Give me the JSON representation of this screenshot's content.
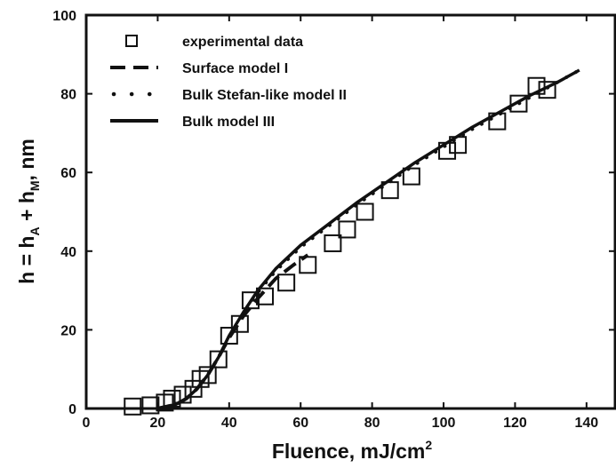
{
  "chart_data": {
    "type": "scatter",
    "title": "",
    "xlabel": "Fluence, mJ/cm",
    "xlabel_sup": "2",
    "ylabel_parts": [
      "h = h",
      "A",
      " + h",
      "M",
      ", nm"
    ],
    "xlim": [
      0,
      148
    ],
    "ylim": [
      0,
      100
    ],
    "xticks": [
      0,
      20,
      40,
      60,
      80,
      100,
      120,
      140
    ],
    "yticks": [
      0,
      20,
      40,
      60,
      80,
      100
    ],
    "grid": false,
    "legend_position": "top-left",
    "colors": {
      "ink": "#111111",
      "background": "#ffffff"
    },
    "series": [
      {
        "name": "experimental data",
        "style": "open-square",
        "x": [
          13,
          18,
          22,
          24,
          27,
          30,
          32,
          34,
          37,
          40,
          43,
          46,
          50,
          56,
          62,
          69,
          73,
          78,
          85,
          91,
          101,
          104,
          115,
          121,
          126,
          129
        ],
        "y": [
          0.5,
          0.8,
          1.5,
          2.5,
          3.5,
          5,
          7.5,
          8.5,
          12.5,
          18.5,
          21.5,
          27.5,
          28.5,
          32,
          36.5,
          42,
          45.5,
          50,
          55.5,
          59,
          65.5,
          67,
          73,
          77.5,
          82,
          81
        ]
      },
      {
        "name": "Surface model  I",
        "style": "dashed",
        "x": [
          20,
          25,
          28,
          31,
          34,
          37,
          40,
          44,
          48,
          53,
          58,
          62
        ],
        "y": [
          0,
          1,
          2.5,
          5,
          8.5,
          13,
          18,
          23.5,
          28,
          33,
          36.5,
          39
        ]
      },
      {
        "name": "Bulk Stefan-like model  II",
        "style": "dotted",
        "x": [
          20,
          25,
          28,
          31,
          34,
          37,
          40,
          44,
          48,
          53,
          60,
          68,
          76,
          84,
          92,
          100,
          108,
          116,
          124,
          132,
          138
        ],
        "y": [
          0,
          1,
          2.5,
          5,
          8.5,
          13,
          18,
          24,
          29.5,
          35,
          41,
          46.5,
          52,
          57,
          62,
          66.5,
          71,
          75,
          79,
          83,
          86
        ]
      },
      {
        "name": "Bulk model  III",
        "style": "solid",
        "x": [
          20,
          25,
          28,
          31,
          34,
          37,
          40,
          44,
          48,
          53,
          60,
          68,
          76,
          84,
          92,
          100,
          108,
          116,
          124,
          132,
          138
        ],
        "y": [
          0,
          1,
          2.5,
          5,
          8.5,
          13,
          18.5,
          24.5,
          30,
          35.5,
          41.5,
          47,
          52.5,
          57.5,
          62.5,
          67,
          71.5,
          75.5,
          79.5,
          83,
          86
        ]
      }
    ]
  }
}
